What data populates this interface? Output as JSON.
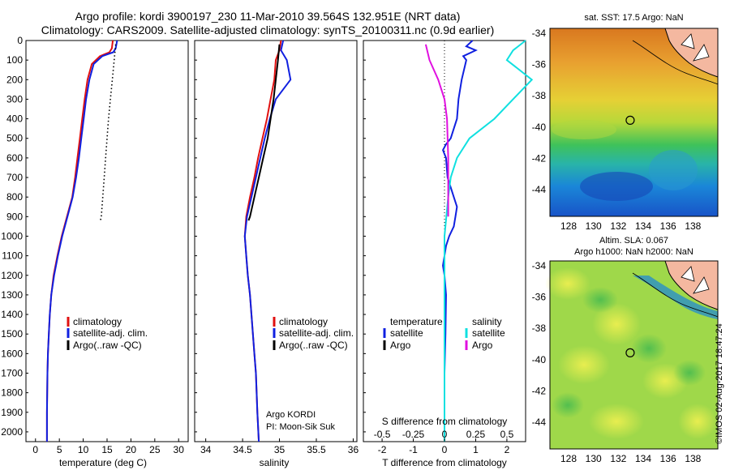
{
  "header": {
    "line1": "Argo profile: kordi 3900197_230 11-Mar-2010 39.564S 132.951E (NRT data)",
    "line2": "Climatology: CARS2009. Satellite-adjusted climatology: synTS_20100311.nc (0.9d earlier)"
  },
  "colors": {
    "climatology": "#e01010",
    "satellite": "#1020e0",
    "argo": "#000000",
    "sal_satellite": "#10e0e0",
    "sal_argo": "#e010e0"
  },
  "chart_data": [
    {
      "type": "line",
      "id": "temperature",
      "xlabel": "temperature (deg C)",
      "ylim": [
        2050,
        0
      ],
      "xlim": [
        -2,
        32
      ],
      "xticks": [
        0,
        5,
        10,
        15,
        20,
        25,
        30
      ],
      "yticks": [
        0,
        100,
        200,
        300,
        400,
        500,
        600,
        700,
        800,
        900,
        1000,
        1100,
        1200,
        1300,
        1400,
        1500,
        1600,
        1700,
        1800,
        1900,
        2000
      ],
      "legend": [
        "climatology",
        "satellite-adj. clim.",
        "Argo(..raw -QC)"
      ],
      "series": [
        {
          "name": "climatology",
          "x": [
            16.2,
            16.0,
            15.5,
            13.5,
            11.8,
            10.9,
            10.3,
            9.8,
            9.3,
            8.8,
            8.3,
            7.7,
            6.6,
            5.5,
            4.6,
            3.8,
            3.3,
            3.0,
            2.8,
            2.6,
            2.5,
            2.4,
            2.4
          ],
          "y": [
            0,
            40,
            60,
            80,
            120,
            200,
            300,
            400,
            500,
            600,
            700,
            800,
            900,
            1000,
            1100,
            1200,
            1300,
            1400,
            1500,
            1600,
            1700,
            1900,
            2050
          ]
        },
        {
          "name": "satellite-adj. clim.",
          "x": [
            17.1,
            16.8,
            16.3,
            14.0,
            12.2,
            11.3,
            10.6,
            10.1,
            9.6,
            9.1,
            8.5,
            7.8,
            6.7,
            5.6,
            4.7,
            3.9,
            3.3,
            3.0,
            2.8,
            2.6,
            2.5,
            2.4,
            2.4
          ],
          "y": [
            0,
            40,
            60,
            80,
            120,
            200,
            300,
            400,
            500,
            600,
            700,
            800,
            900,
            1000,
            1100,
            1200,
            1300,
            1400,
            1500,
            1600,
            1700,
            1900,
            2050
          ]
        },
        {
          "name": "Argo(..raw -QC)",
          "style": "dotted",
          "x": [
            16.8,
            16.5,
            16.1,
            15.7,
            15.3,
            15.0,
            14.7,
            14.4,
            14.1,
            13.8,
            13.6
          ],
          "y": [
            20,
            100,
            200,
            300,
            400,
            500,
            600,
            700,
            800,
            900,
            920
          ]
        }
      ]
    },
    {
      "type": "line",
      "id": "salinity",
      "xlabel": "salinity",
      "ylim": [
        2050,
        0
      ],
      "xlim": [
        33.85,
        36.05
      ],
      "xticks": [
        34,
        34.5,
        35,
        35.5,
        36
      ],
      "legend": [
        "climatology",
        "satellite-adj. clim.",
        "Argo(..raw -QC)"
      ],
      "annotation": [
        "Argo KORDI",
        "PI: Moon-Sik Suk"
      ],
      "series": [
        {
          "name": "climatology",
          "x": [
            35.02,
            35.0,
            34.95,
            34.93,
            34.88,
            34.83,
            34.77,
            34.71,
            34.66,
            34.6,
            34.55,
            34.53,
            34.55,
            34.57,
            34.6,
            34.62,
            34.64,
            34.66,
            34.68,
            34.7,
            34.72
          ],
          "y": [
            0,
            50,
            100,
            200,
            300,
            400,
            500,
            600,
            700,
            800,
            900,
            1000,
            1100,
            1200,
            1300,
            1400,
            1500,
            1600,
            1700,
            1900,
            2050
          ]
        },
        {
          "name": "satellite-adj. clim.",
          "x": [
            35.05,
            35.02,
            35.1,
            35.15,
            34.95,
            34.87,
            34.8,
            34.74,
            34.68,
            34.62,
            34.56,
            34.53,
            34.55,
            34.57,
            34.6,
            34.62,
            34.64,
            34.66,
            34.68,
            34.7,
            34.72
          ],
          "y": [
            0,
            50,
            100,
            200,
            300,
            400,
            500,
            600,
            700,
            800,
            900,
            1000,
            1100,
            1200,
            1300,
            1400,
            1500,
            1600,
            1700,
            1900,
            2050
          ]
        },
        {
          "name": "Argo(..raw -QC)",
          "x": [
            35.0,
            34.98,
            34.95,
            34.92,
            34.88,
            34.84,
            34.78,
            34.72,
            34.66,
            34.6,
            34.58
          ],
          "y": [
            20,
            100,
            200,
            300,
            400,
            500,
            600,
            700,
            800,
            900,
            920
          ]
        }
      ]
    },
    {
      "type": "line",
      "id": "difference",
      "xlabel": "T difference from climatology",
      "xlabel2": "S difference from climatology",
      "ylim": [
        2050,
        0
      ],
      "xlim": [
        -2.6,
        2.6
      ],
      "xticks": [
        -2,
        -1,
        0,
        1,
        2
      ],
      "xticks2": [
        -0.5,
        -0.25,
        0,
        0.25,
        0.5
      ],
      "legend_left_title": "temperature",
      "legend_right_title": "salinity",
      "legend_left": [
        "satellite",
        "Argo"
      ],
      "legend_right": [
        "satellite",
        "Argo"
      ],
      "series": [
        {
          "name": "temperature satellite",
          "x": [
            0.9,
            0.7,
            1.0,
            0.6,
            0.7,
            0.55,
            0.45,
            0.4,
            0.3,
            0.2,
            0.05,
            -0.05,
            0.05,
            0.1,
            0.3,
            0.4,
            0.35,
            0.3,
            0.15,
            0.05,
            0,
            -0.05,
            0,
            0.05,
            0.03,
            0,
            0,
            0
          ],
          "y": [
            0,
            30,
            50,
            80,
            100,
            200,
            300,
            400,
            450,
            500,
            530,
            560,
            600,
            700,
            800,
            850,
            900,
            950,
            1000,
            1050,
            1100,
            1150,
            1200,
            1300,
            1500,
            1700,
            1900,
            2050
          ]
        },
        {
          "name": "salinity satellite",
          "x": [
            0.65,
            0.55,
            0.5,
            0.7,
            0.55,
            0.4,
            0.2,
            0.1,
            0.05,
            0.03,
            0,
            0,
            0
          ],
          "y": [
            0,
            50,
            100,
            200,
            300,
            400,
            500,
            600,
            700,
            800,
            1000,
            1500,
            2050
          ]
        },
        {
          "name": "salinity Argo",
          "x": [
            -0.15,
            -0.12,
            -0.05,
            0,
            0.02,
            0.03,
            0.03,
            0.03
          ],
          "y": [
            20,
            100,
            200,
            300,
            400,
            600,
            800,
            900
          ]
        }
      ]
    }
  ],
  "maps": {
    "sst_title": "sat. SST: 17.5 Argo: NaN",
    "sla_title1": "Altim. SLA: 0.067",
    "sla_title2": "Argo h1000: NaN h2000: NaN",
    "lat_ticks": [
      "-34",
      "-36",
      "-38",
      "-40",
      "-42",
      "-44"
    ],
    "lon_ticks": [
      "128",
      "130",
      "132",
      "134",
      "136",
      "138"
    ],
    "profile_lon": 132.951,
    "profile_lat": -39.564
  },
  "credit": "©IMOS 02-Aug-2017 18:47:24"
}
